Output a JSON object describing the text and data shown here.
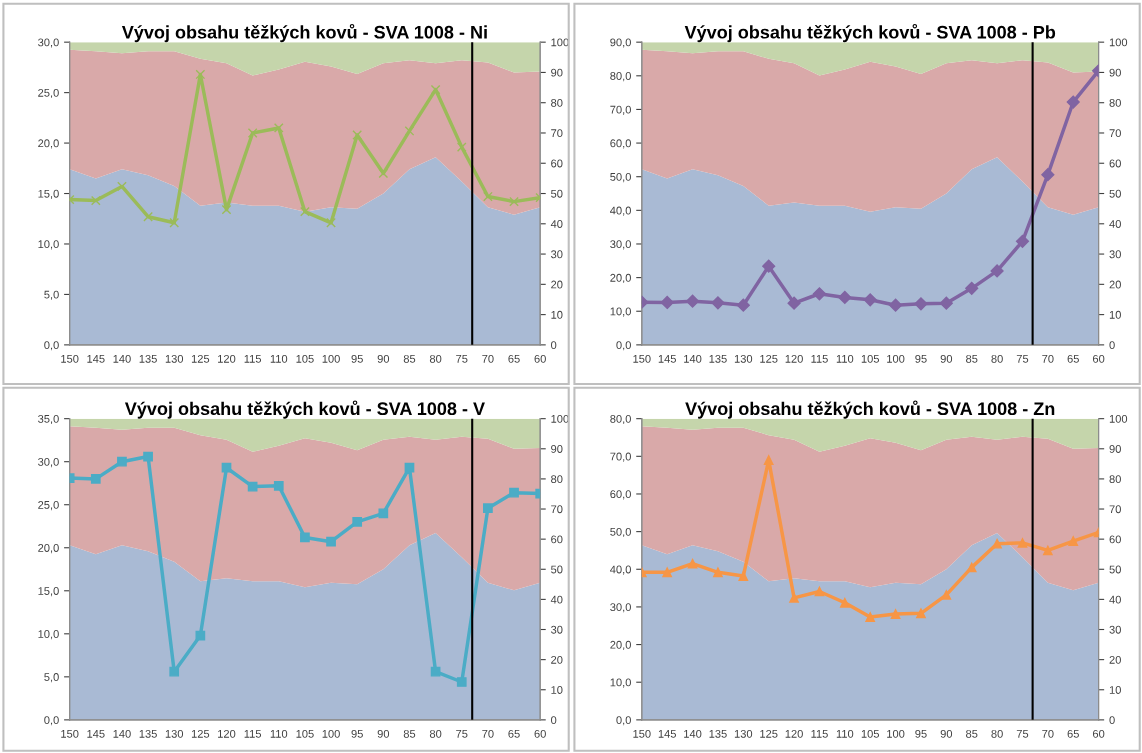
{
  "chart_data": [
    {
      "type": "line",
      "title": "Vývoj obsahu těžkých kovů - SVA 1008 - Ni",
      "x": [
        150,
        145,
        140,
        135,
        130,
        125,
        120,
        115,
        110,
        105,
        100,
        95,
        90,
        85,
        80,
        75,
        70,
        65,
        60
      ],
      "xlim": [
        150,
        60
      ],
      "xticks": [
        150,
        145,
        140,
        135,
        130,
        125,
        120,
        115,
        110,
        105,
        100,
        95,
        90,
        85,
        80,
        75,
        70,
        65,
        60
      ],
      "ylim": [
        0,
        30
      ],
      "yticks": [
        {
          "value": 0,
          "label": "0,0"
        },
        {
          "value": 5,
          "label": "5,0"
        },
        {
          "value": 10,
          "label": "10,0"
        },
        {
          "value": 15,
          "label": "15,0"
        },
        {
          "value": 20,
          "label": "20,0"
        },
        {
          "value": 25,
          "label": "25,0"
        },
        {
          "value": 30,
          "label": "30,0"
        }
      ],
      "y2lim": [
        0,
        100
      ],
      "y2ticks": [
        0,
        10,
        20,
        30,
        40,
        50,
        60,
        70,
        80,
        90,
        100
      ],
      "stacked": true,
      "grid": false,
      "legend": false,
      "line_style": "solid",
      "ref_lines": [
        {
          "axis": "x",
          "value": 73,
          "color": "#000000"
        }
      ],
      "series": [
        {
          "type": "area",
          "axis": "y2",
          "color": "#a9bad4",
          "values": [
            58,
            55,
            58,
            56,
            52.5,
            46,
            47,
            46,
            46,
            44,
            45.5,
            45,
            50,
            58,
            62,
            54,
            45.5,
            43,
            45.5
          ]
        },
        {
          "type": "area",
          "axis": "y2",
          "color": "#d9a9a9",
          "values": [
            39.5,
            42,
            38.3,
            41,
            44.5,
            48.5,
            46,
            43,
            45,
            49.5,
            46.5,
            44.5,
            43,
            36,
            31,
            40,
            47.8,
            47,
            44.8
          ]
        },
        {
          "type": "area",
          "axis": "y2",
          "color": "#c5d5ab",
          "values": [
            2.5,
            3,
            3.7,
            3,
            3,
            5.5,
            7,
            11,
            9,
            6.5,
            8,
            10.5,
            7,
            6,
            7,
            6,
            6.7,
            10,
            9.7
          ]
        },
        {
          "marker": "cross",
          "color": "#9bbb59",
          "values": [
            14.4,
            14.3,
            15.7,
            12.7,
            12.1,
            26.8,
            13.4,
            21.0,
            21.5,
            13.2,
            12.1,
            20.8,
            17.0,
            21.2,
            25.3,
            19.6,
            14.7,
            14.2,
            14.6
          ]
        }
      ]
    },
    {
      "type": "line",
      "title": "Vývoj obsahu těžkých kovů - SVA 1008 - Pb",
      "x": [
        150,
        145,
        140,
        135,
        130,
        125,
        120,
        115,
        110,
        105,
        100,
        95,
        90,
        85,
        80,
        75,
        70,
        65,
        60
      ],
      "xlim": [
        150,
        60
      ],
      "xticks": [
        150,
        145,
        140,
        135,
        130,
        125,
        120,
        115,
        110,
        105,
        100,
        95,
        90,
        85,
        80,
        75,
        70,
        65,
        60
      ],
      "ylim": [
        0,
        90
      ],
      "yticks": [
        {
          "value": 0,
          "label": "0,0"
        },
        {
          "value": 10,
          "label": "10,0"
        },
        {
          "value": 20,
          "label": "20,0"
        },
        {
          "value": 30,
          "label": "30,0"
        },
        {
          "value": 40,
          "label": "40,0"
        },
        {
          "value": 50,
          "label": "50,0"
        },
        {
          "value": 60,
          "label": "60,0"
        },
        {
          "value": 70,
          "label": "70,0"
        },
        {
          "value": 80,
          "label": "80,0"
        },
        {
          "value": 90,
          "label": "90,0"
        }
      ],
      "y2lim": [
        0,
        100
      ],
      "y2ticks": [
        0,
        10,
        20,
        30,
        40,
        50,
        60,
        70,
        80,
        90,
        100
      ],
      "stacked": true,
      "grid": false,
      "legend": false,
      "line_style": "solid",
      "ref_lines": [
        {
          "axis": "x",
          "value": 73,
          "color": "#000000"
        }
      ],
      "series": [
        {
          "type": "area",
          "axis": "y2",
          "color": "#a9bad4",
          "values": [
            58,
            55,
            58,
            56,
            52.5,
            46,
            47,
            46,
            46,
            44,
            45.5,
            45,
            50,
            58,
            62,
            54,
            45.5,
            43,
            45.5
          ]
        },
        {
          "type": "area",
          "axis": "y2",
          "color": "#d9a9a9",
          "values": [
            39.5,
            42,
            38.3,
            41,
            44.5,
            48.5,
            46,
            43,
            45,
            49.5,
            46.5,
            44.5,
            43,
            36,
            31,
            40,
            47.8,
            47,
            44.8
          ]
        },
        {
          "type": "area",
          "axis": "y2",
          "color": "#c5d5ab",
          "values": [
            2.5,
            3,
            3.7,
            3,
            3,
            5.5,
            7,
            11,
            9,
            6.5,
            8,
            10.5,
            7,
            6,
            7,
            6,
            6.7,
            10,
            9.7
          ]
        },
        {
          "marker": "diamond",
          "color": "#8064a2",
          "values": [
            12.7,
            12.6,
            13.0,
            12.5,
            11.8,
            23.4,
            12.4,
            15.2,
            14.1,
            13.4,
            11.8,
            12.2,
            12.4,
            16.8,
            22.0,
            30.8,
            50.6,
            72.2,
            81.5
          ]
        }
      ]
    },
    {
      "type": "line",
      "title": "Vývoj obsahu těžkých kovů - SVA 1008 - V",
      "x": [
        150,
        145,
        140,
        135,
        130,
        125,
        120,
        115,
        110,
        105,
        100,
        95,
        90,
        85,
        80,
        75,
        70,
        65,
        60
      ],
      "xlim": [
        150,
        60
      ],
      "xticks": [
        150,
        145,
        140,
        135,
        130,
        125,
        120,
        115,
        110,
        105,
        100,
        95,
        90,
        85,
        80,
        75,
        70,
        65,
        60
      ],
      "ylim": [
        0,
        35
      ],
      "yticks": [
        {
          "value": 0,
          "label": "0,0"
        },
        {
          "value": 5,
          "label": "5,0"
        },
        {
          "value": 10,
          "label": "10,0"
        },
        {
          "value": 15,
          "label": "15,0"
        },
        {
          "value": 20,
          "label": "20,0"
        },
        {
          "value": 25,
          "label": "25,0"
        },
        {
          "value": 30,
          "label": "30,0"
        },
        {
          "value": 35,
          "label": "35,0"
        }
      ],
      "y2lim": [
        0,
        100
      ],
      "y2ticks": [
        0,
        10,
        20,
        30,
        40,
        50,
        60,
        70,
        80,
        90,
        100
      ],
      "stacked": true,
      "grid": false,
      "legend": false,
      "line_style": "solid",
      "ref_lines": [
        {
          "axis": "x",
          "value": 73,
          "color": "#000000"
        }
      ],
      "series": [
        {
          "type": "area",
          "axis": "y2",
          "color": "#a9bad4",
          "values": [
            58,
            55,
            58,
            56,
            52.5,
            46,
            47,
            46,
            46,
            44,
            45.5,
            45,
            50,
            58,
            62,
            54,
            45.5,
            43,
            45.5
          ]
        },
        {
          "type": "area",
          "axis": "y2",
          "color": "#d9a9a9",
          "values": [
            39.5,
            42,
            38.3,
            41,
            44.5,
            48.5,
            46,
            43,
            45,
            49.5,
            46.5,
            44.5,
            43,
            36,
            31,
            40,
            47.8,
            47,
            44.8
          ]
        },
        {
          "type": "area",
          "axis": "y2",
          "color": "#c5d5ab",
          "values": [
            2.5,
            3,
            3.7,
            3,
            3,
            5.5,
            7,
            11,
            9,
            6.5,
            8,
            10.5,
            7,
            6,
            7,
            6,
            6.7,
            10,
            9.7
          ]
        },
        {
          "marker": "square",
          "color": "#4bacc6",
          "values": [
            28.1,
            28.0,
            30.0,
            30.6,
            5.6,
            9.8,
            29.3,
            27.1,
            27.2,
            21.2,
            20.7,
            23.0,
            24.0,
            29.3,
            5.6,
            4.4,
            24.6,
            26.4,
            26.3
          ]
        }
      ]
    },
    {
      "type": "line",
      "title": "Vývoj obsahu těžkých kovů - SVA 1008 - Zn",
      "x": [
        150,
        145,
        140,
        135,
        130,
        125,
        120,
        115,
        110,
        105,
        100,
        95,
        90,
        85,
        80,
        75,
        70,
        65,
        60
      ],
      "xlim": [
        150,
        60
      ],
      "xticks": [
        150,
        145,
        140,
        135,
        130,
        125,
        120,
        115,
        110,
        105,
        100,
        95,
        90,
        85,
        80,
        75,
        70,
        65,
        60
      ],
      "ylim": [
        0,
        80
      ],
      "yticks": [
        {
          "value": 0,
          "label": "0,0"
        },
        {
          "value": 10,
          "label": "10,0"
        },
        {
          "value": 20,
          "label": "20,0"
        },
        {
          "value": 30,
          "label": "30,0"
        },
        {
          "value": 40,
          "label": "40,0"
        },
        {
          "value": 50,
          "label": "50,0"
        },
        {
          "value": 60,
          "label": "60,0"
        },
        {
          "value": 70,
          "label": "70,0"
        },
        {
          "value": 80,
          "label": "80,0"
        }
      ],
      "y2lim": [
        0,
        100
      ],
      "y2ticks": [
        0,
        10,
        20,
        30,
        40,
        50,
        60,
        70,
        80,
        90,
        100
      ],
      "stacked": true,
      "grid": false,
      "legend": false,
      "line_style": "solid",
      "ref_lines": [
        {
          "axis": "x",
          "value": 73,
          "color": "#000000"
        }
      ],
      "series": [
        {
          "type": "area",
          "axis": "y2",
          "color": "#a9bad4",
          "values": [
            58,
            55,
            58,
            56,
            52.5,
            46,
            47,
            46,
            46,
            44,
            45.5,
            45,
            50,
            58,
            62,
            54,
            45.5,
            43,
            45.5
          ]
        },
        {
          "type": "area",
          "axis": "y2",
          "color": "#d9a9a9",
          "values": [
            39.5,
            42,
            38.3,
            41,
            44.5,
            48.5,
            46,
            43,
            45,
            49.5,
            46.5,
            44.5,
            43,
            36,
            31,
            40,
            47.8,
            47,
            44.8
          ]
        },
        {
          "type": "area",
          "axis": "y2",
          "color": "#c5d5ab",
          "values": [
            2.5,
            3,
            3.7,
            3,
            3,
            5.5,
            7,
            11,
            9,
            6.5,
            8,
            10.5,
            7,
            6,
            7,
            6,
            6.7,
            10,
            9.7
          ]
        },
        {
          "marker": "triangle",
          "color": "#f79646",
          "values": [
            39.2,
            39.2,
            41.5,
            39.2,
            38.2,
            69.0,
            32.4,
            34.1,
            31.1,
            27.3,
            28.1,
            28.3,
            33.2,
            40.5,
            46.8,
            47.0,
            45.0,
            47.5,
            49.8
          ]
        }
      ]
    }
  ]
}
